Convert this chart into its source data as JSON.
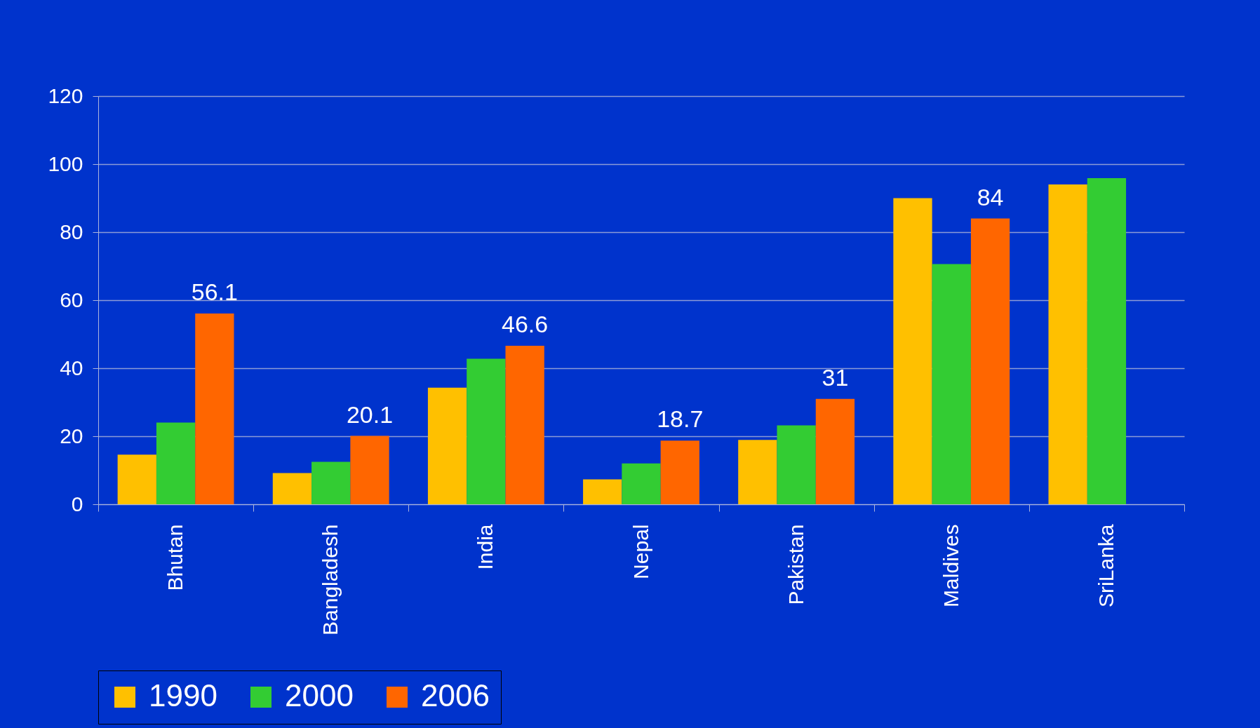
{
  "chart_data": {
    "type": "bar",
    "categories": [
      "Bhutan",
      "Bangladesh",
      "India",
      "Nepal",
      "Pakistan",
      "Maldives",
      "SriLanka"
    ],
    "series": [
      {
        "name": "1990",
        "color": "#ffc000",
        "values": [
          14.6,
          9.2,
          34.3,
          7.3,
          18.9,
          90,
          94
        ]
      },
      {
        "name": "2000",
        "color": "#33cc33",
        "values": [
          24,
          12.5,
          42.8,
          12,
          23.2,
          70.6,
          95.9
        ]
      },
      {
        "name": "2006",
        "color": "#ff6600",
        "values": [
          56.1,
          20.1,
          46.6,
          18.7,
          31,
          84,
          null
        ],
        "value_labels": [
          "56.1",
          "20.1",
          "46.6",
          "18.7",
          "31",
          "84",
          null
        ]
      }
    ],
    "ylim": [
      0,
      120
    ],
    "yticks": [
      0,
      20,
      40,
      60,
      80,
      100,
      120
    ],
    "grid": "y",
    "legend": "bottom"
  }
}
